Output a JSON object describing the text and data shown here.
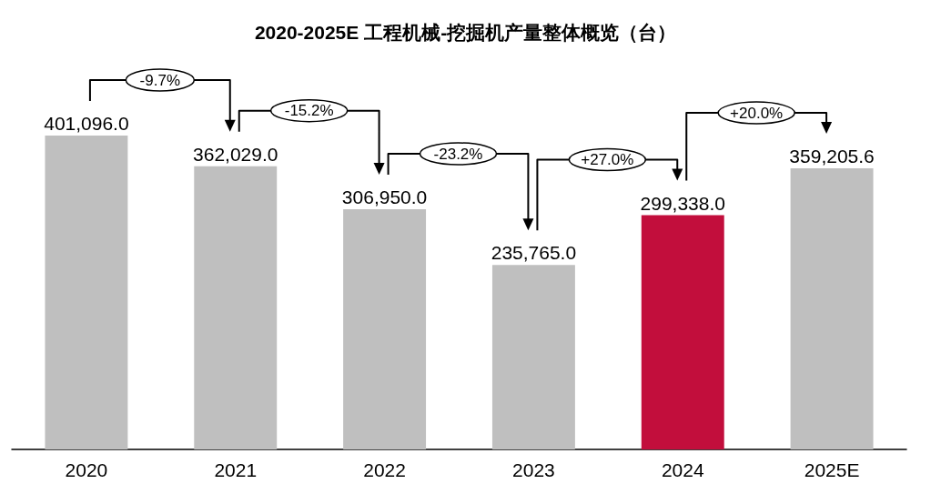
{
  "chart_data": {
    "type": "bar",
    "title": "2020-2025E 工程机械-挖掘机产量整体概览（台）",
    "categories": [
      "2020",
      "2021",
      "2022",
      "2023",
      "2024",
      "2025E"
    ],
    "values": [
      401096.0,
      362029.0,
      306950.0,
      235765.0,
      299338.0,
      359205.6
    ],
    "colors": [
      "#bfbfbf",
      "#bfbfbf",
      "#bfbfbf",
      "#bfbfbf",
      "#c20e3c",
      "#bfbfbf"
    ],
    "value_labels": [
      "401,096.0",
      "362,029.0",
      "306,950.0",
      "235,765.0",
      "299,338.0",
      "359,205.6"
    ],
    "annotations": [
      "-9.7%",
      "-15.2%",
      "-23.2%",
      "+27.0%",
      "+20.0%"
    ],
    "tick_labels": "x"
  }
}
